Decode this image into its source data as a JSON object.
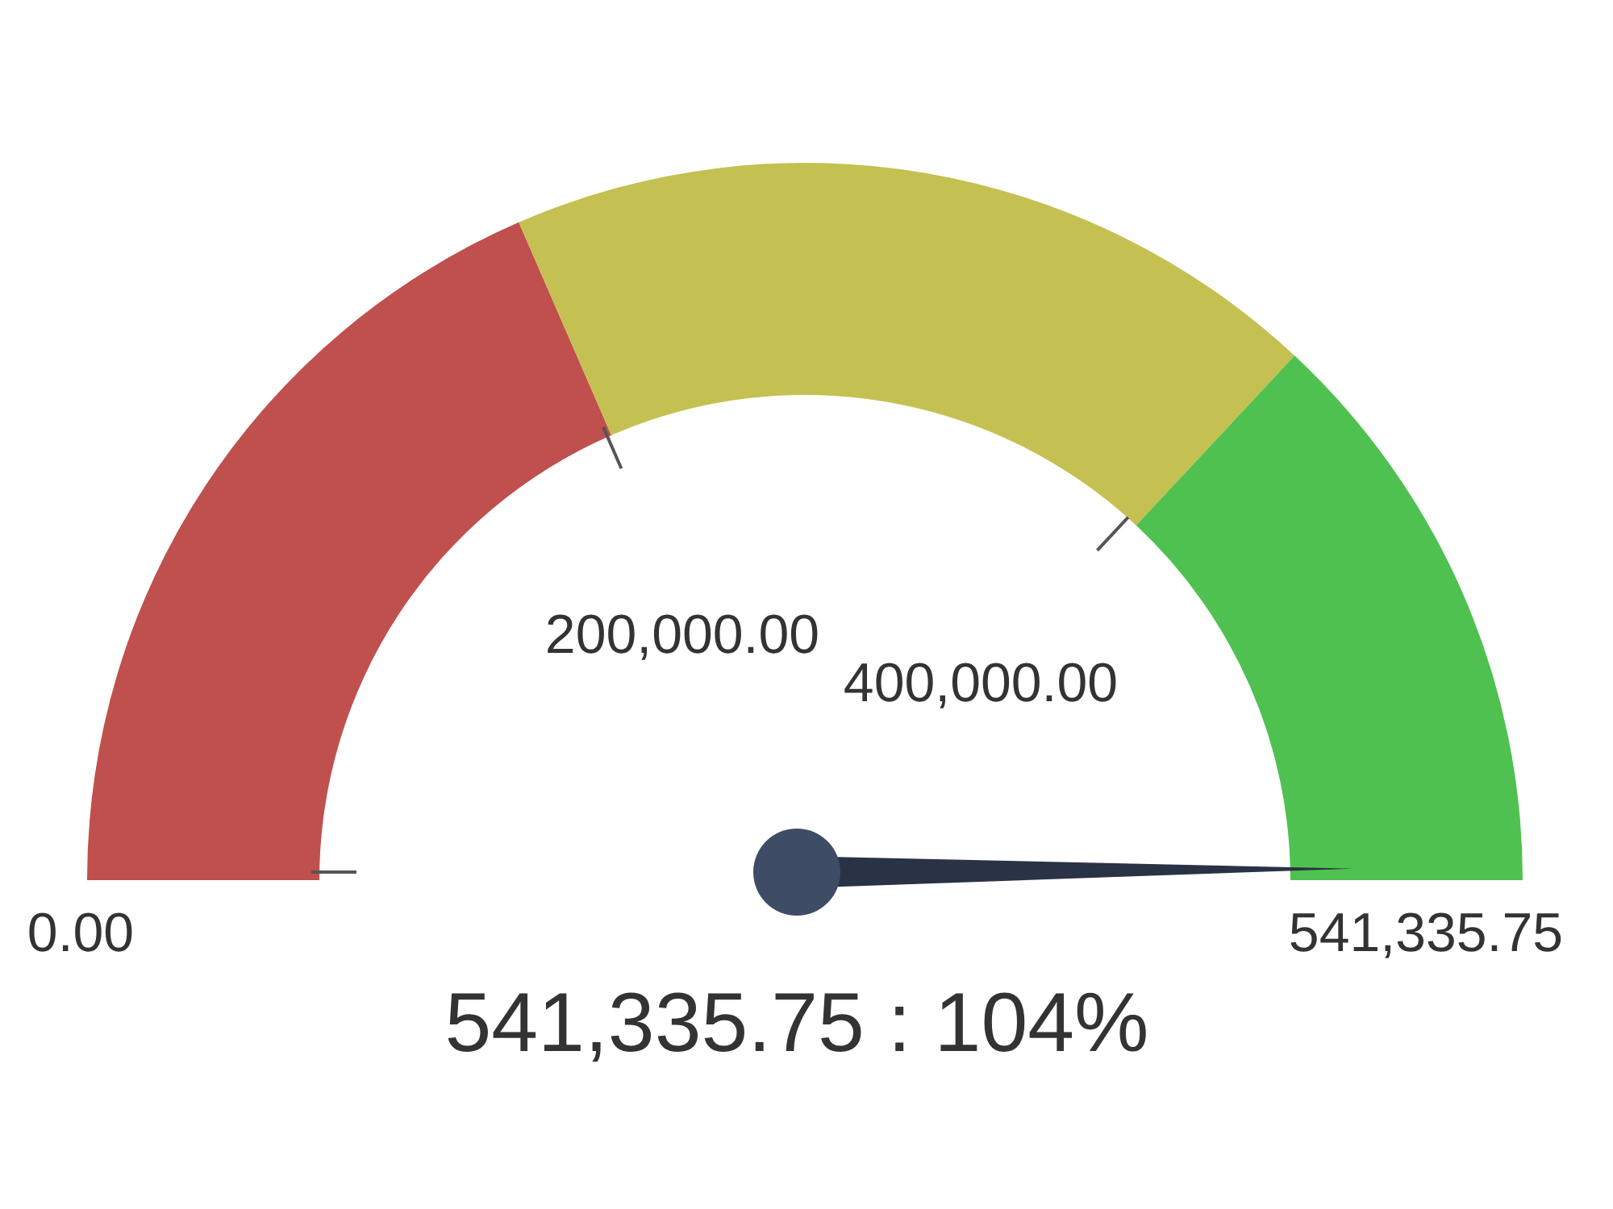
{
  "chart_data": {
    "type": "donut",
    "categories": [
      "0.00",
      "200,000.00",
      "400,000.00"
    ],
    "values": [
      36.95,
      36.95,
      26.1
    ],
    "colors": [
      "#c0504d",
      "#c4c152",
      "#4fc150"
    ],
    "needle": "400,000.00",
    "annotations": [
      "541,335.75",
      "541,335.75 : 104%"
    ]
  }
}
